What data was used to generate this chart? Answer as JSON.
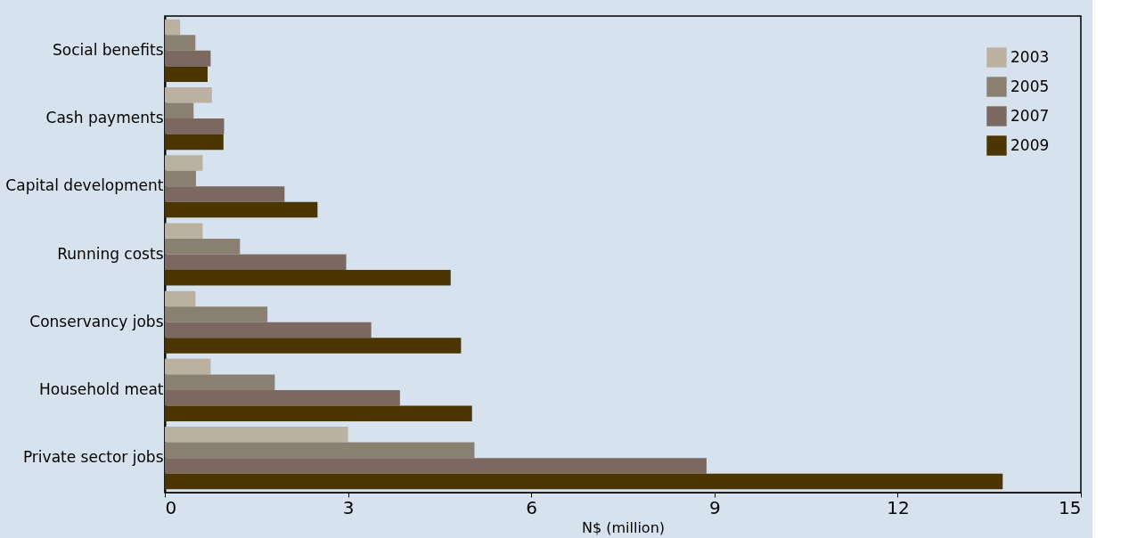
{
  "chart_data": {
    "type": "bar",
    "orientation": "horizontal",
    "xlabel": "N$ (million)",
    "categories": [
      "Social benefits",
      "Cash payments",
      "Capital development",
      "Running costs",
      "Conservancy jobs",
      "Household meat",
      "Private sector jobs"
    ],
    "series": [
      {
        "name": "2003",
        "color": "#bab1a0",
        "values": [
          0.25,
          0.77,
          0.62,
          0.62,
          0.5,
          0.75,
          3.0
        ]
      },
      {
        "name": "2005",
        "color": "#898072",
        "values": [
          0.5,
          0.47,
          0.51,
          1.23,
          1.68,
          1.8,
          5.07
        ]
      },
      {
        "name": "2007",
        "color": "#7b6861",
        "values": [
          0.75,
          0.97,
          1.96,
          2.97,
          3.38,
          3.85,
          8.87
        ]
      },
      {
        "name": "2009",
        "color": "#4b3502",
        "values": [
          0.7,
          0.96,
          2.5,
          4.68,
          4.85,
          5.03,
          13.72
        ]
      }
    ],
    "xlim": [
      0,
      15
    ],
    "xticks": [
      0,
      3,
      6,
      9,
      12,
      15
    ],
    "grid": false,
    "legend": "top right"
  }
}
